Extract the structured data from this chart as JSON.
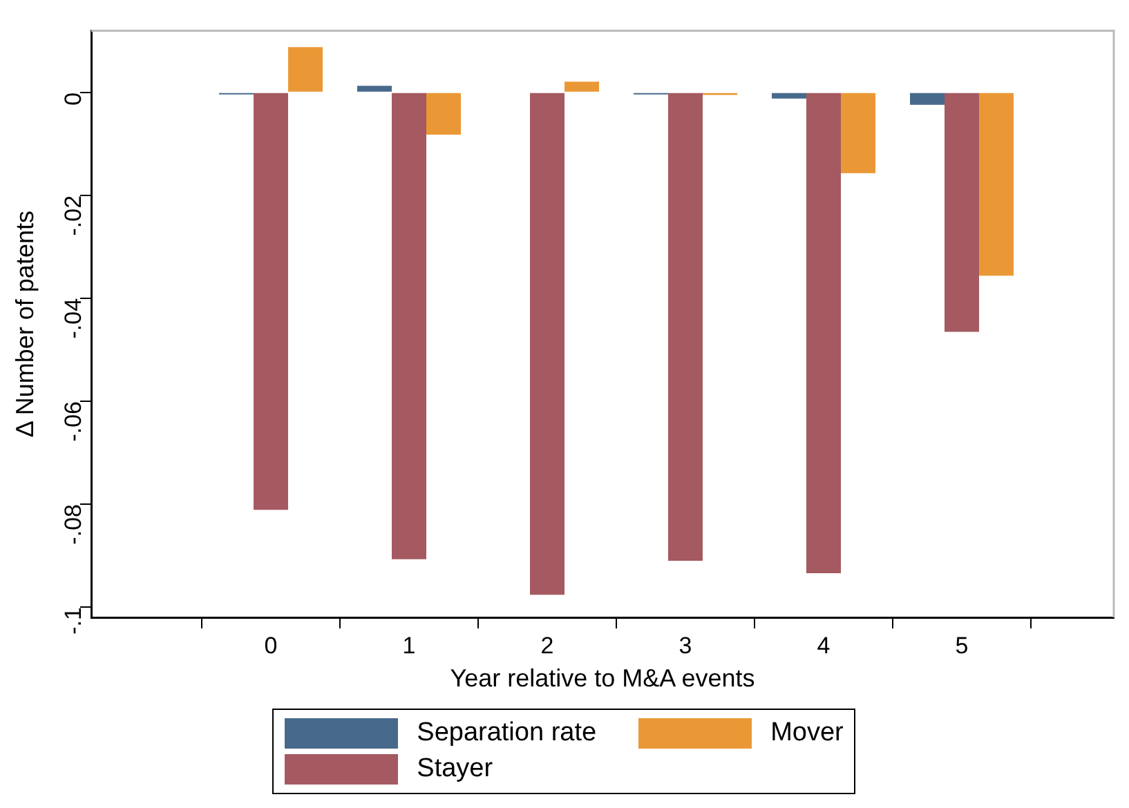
{
  "chart_data": {
    "type": "bar",
    "xlabel": "Year relative to M&A events",
    "ylabel": "Δ Number of patents",
    "x": [
      0,
      1,
      2,
      3,
      4,
      5
    ],
    "xlim": [
      -1.3,
      6.1
    ],
    "xticks": [
      0,
      1,
      2,
      3,
      4,
      5
    ],
    "ylim": [
      -0.102,
      0.012
    ],
    "yticks": [
      {
        "value": 0,
        "label": "0"
      },
      {
        "value": -0.02,
        "label": "-.02"
      },
      {
        "value": -0.04,
        "label": "-.04"
      },
      {
        "value": -0.06,
        "label": "-.06"
      },
      {
        "value": -0.08,
        "label": "-.08"
      },
      {
        "value": -0.1,
        "label": "-.1"
      }
    ],
    "series": [
      {
        "name": "Separation rate",
        "color": "#476a8c",
        "values": [
          -0.0001,
          0.0013,
          null,
          -0.0001,
          -0.0012,
          -0.0024
        ]
      },
      {
        "name": "Stayer",
        "color": "#a45a60",
        "values": [
          -0.0811,
          -0.0907,
          -0.0976,
          -0.091,
          -0.0934,
          -0.0465
        ]
      },
      {
        "name": "Mover",
        "color": "#ea9835",
        "values": [
          0.0088,
          -0.0082,
          0.0021,
          -0.0005,
          -0.0157,
          -0.0356
        ]
      }
    ],
    "grid": false,
    "legend": "bottom"
  }
}
